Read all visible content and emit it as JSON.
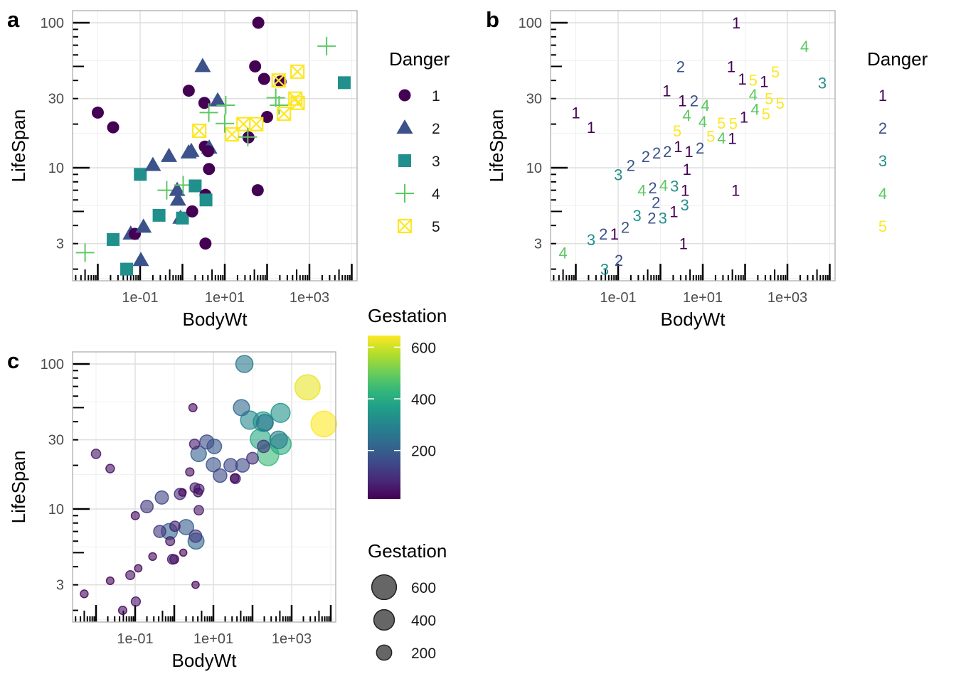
{
  "panel_tags": [
    "a",
    "b",
    "c"
  ],
  "legends": {
    "danger_title": "Danger",
    "danger_levels": [
      "1",
      "2",
      "3",
      "4",
      "5"
    ],
    "gestation_color_title": "Gestation",
    "gestation_color_ticks": [
      "600",
      "400",
      "200"
    ],
    "gestation_color_tick_values": [
      600,
      400,
      200
    ],
    "gestation_size_title": "Gestation",
    "gestation_size_ticks": [
      "600",
      "400",
      "200"
    ],
    "gestation_size_tick_values": [
      600,
      400,
      200
    ]
  },
  "colors": {
    "danger": [
      "#440154",
      "#3B528B",
      "#21908C",
      "#5DC863",
      "#FDE725"
    ],
    "viridis": [
      "#440154",
      "#482878",
      "#3E4A89",
      "#31688E",
      "#26828E",
      "#1F9E89",
      "#35B779",
      "#6DCD59",
      "#B4DE2C",
      "#FDE725"
    ]
  },
  "chart_data": [
    {
      "panel": "a",
      "type": "scatter",
      "xlabel": "BodyWt",
      "ylabel": "LifeSpan",
      "x_scale": "log10",
      "y_scale": "log10",
      "xlim": [
        0.0025,
        13000
      ],
      "ylim": [
        1.65,
        121
      ],
      "x_ticks": [
        {
          "value": 0.1,
          "label": "1e-01"
        },
        {
          "value": 10,
          "label": "1e+01"
        },
        {
          "value": 1000,
          "label": "1e+03"
        }
      ],
      "y_ticks": [
        {
          "value": 3,
          "label": "3"
        },
        {
          "value": 10,
          "label": "10"
        },
        {
          "value": 30,
          "label": "30"
        },
        {
          "value": 100,
          "label": "100"
        }
      ],
      "grid": true,
      "log_ticks": true,
      "encoding": {
        "shape": "Danger",
        "color": "Danger"
      },
      "legend_position": "right",
      "shapes": [
        "circle",
        "triangle",
        "square",
        "plus",
        "square-x"
      ],
      "points_fields": [
        "BodyWt",
        "LifeSpan",
        "Gestation",
        "Danger"
      ],
      "points": [
        [
          62,
          100,
          267,
          1
        ],
        [
          2547,
          69,
          624,
          4
        ],
        [
          6654,
          38.6,
          645,
          3
        ],
        [
          3,
          50,
          28,
          2
        ],
        [
          52.16,
          50,
          230,
          1
        ],
        [
          85,
          41,
          310,
          1
        ],
        [
          521,
          46,
          336,
          5
        ],
        [
          207,
          39.3,
          252,
          1
        ],
        [
          187.1,
          40,
          365,
          5
        ],
        [
          1.41,
          34,
          null,
          1
        ],
        [
          3.3,
          28,
          63,
          1
        ],
        [
          6.8,
          29,
          164,
          2
        ],
        [
          4.19,
          24,
          210,
          4
        ],
        [
          10.55,
          27,
          180,
          4
        ],
        [
          160,
          30.4,
          392,
          4
        ],
        [
          192,
          27,
          115,
          4
        ],
        [
          465,
          30,
          281,
          5
        ],
        [
          529,
          28,
          400,
          5
        ],
        [
          250,
          23.6,
          440,
          5
        ],
        [
          100,
          22.4,
          100,
          1
        ],
        [
          27.66,
          20,
          148,
          5
        ],
        [
          55.5,
          20,
          151,
          5
        ],
        [
          14.83,
          17,
          150,
          5
        ],
        [
          36.33,
          16.2,
          63,
          1
        ],
        [
          35,
          16.3,
          33,
          4
        ],
        [
          10,
          20.2,
          170,
          4
        ],
        [
          2.5,
          18,
          31,
          5
        ],
        [
          0.023,
          19,
          35,
          1
        ],
        [
          0.01,
          24,
          50,
          1
        ],
        [
          0.48,
          12,
          140,
          2
        ],
        [
          1.62,
          13,
          17,
          2
        ],
        [
          1.4,
          12.7,
          90,
          2
        ],
        [
          3.385,
          14,
          60,
          1
        ],
        [
          4.288,
          13.7,
          63,
          2
        ],
        [
          4.05,
          13,
          38,
          1
        ],
        [
          4.235,
          9.8,
          52,
          1
        ],
        [
          0.101,
          9,
          28,
          3
        ],
        [
          0.2,
          10.4,
          120,
          2
        ],
        [
          0.425,
          7,
          112,
          4
        ],
        [
          0.75,
          7,
          225,
          2
        ],
        [
          1.04,
          7.6,
          68,
          4
        ],
        [
          2,
          7.5,
          200,
          3
        ],
        [
          0.785,
          6,
          42,
          2
        ],
        [
          3.5,
          6.5,
          120,
          1
        ],
        [
          3.6,
          6,
          225,
          3
        ],
        [
          0.28,
          4.7,
          21,
          3
        ],
        [
          0.9,
          4.5,
          60,
          2
        ],
        [
          1,
          4.5,
          42,
          3
        ],
        [
          1.7,
          5,
          12,
          1
        ],
        [
          0.023,
          3.2,
          19,
          3
        ],
        [
          0.06,
          3.5,
          null,
          2
        ],
        [
          0.075,
          3.5,
          42,
          1
        ],
        [
          0.12,
          3.9,
          16,
          2
        ],
        [
          0.104,
          2.3,
          46,
          2
        ],
        [
          3.5,
          3,
          14,
          1
        ],
        [
          0.048,
          2,
          30,
          3
        ],
        [
          0.005,
          2.6,
          21.5,
          4
        ],
        [
          60,
          7,
          null,
          1
        ]
      ]
    },
    {
      "panel": "b",
      "type": "scatter",
      "xlabel": "BodyWt",
      "ylabel": "LifeSpan",
      "x_scale": "log10",
      "y_scale": "log10",
      "xlim": [
        0.0025,
        13000
      ],
      "ylim": [
        1.65,
        121
      ],
      "x_ticks": [
        {
          "value": 0.1,
          "label": "1e-01"
        },
        {
          "value": 10,
          "label": "1e+01"
        },
        {
          "value": 1000,
          "label": "1e+03"
        }
      ],
      "y_ticks": [
        {
          "value": 3,
          "label": "3"
        },
        {
          "value": 10,
          "label": "10"
        },
        {
          "value": 30,
          "label": "30"
        },
        {
          "value": 100,
          "label": "100"
        }
      ],
      "grid": true,
      "log_ticks": true,
      "encoding": {
        "label": "Danger",
        "color": "Danger"
      },
      "legend_position": "right",
      "points_fields": [
        "BodyWt",
        "LifeSpan",
        "Gestation",
        "Danger"
      ],
      "points": [
        [
          62,
          100,
          267,
          1
        ],
        [
          2547,
          69,
          624,
          4
        ],
        [
          6654,
          38.6,
          645,
          3
        ],
        [
          3,
          50,
          28,
          2
        ],
        [
          52.16,
          50,
          230,
          1
        ],
        [
          85,
          41,
          310,
          1
        ],
        [
          521,
          46,
          336,
          5
        ],
        [
          207,
          39.3,
          252,
          1
        ],
        [
          187.1,
          40,
          365,
          5
        ],
        [
          1.41,
          34,
          null,
          1
        ],
        [
          3.3,
          28,
          63,
          1
        ],
        [
          6.8,
          29,
          164,
          2
        ],
        [
          4.19,
          24,
          210,
          4
        ],
        [
          10.55,
          27,
          180,
          4
        ],
        [
          160,
          30.4,
          392,
          4
        ],
        [
          192,
          27,
          115,
          4
        ],
        [
          465,
          30,
          281,
          5
        ],
        [
          529,
          28,
          400,
          5
        ],
        [
          250,
          23.6,
          440,
          5
        ],
        [
          100,
          22.4,
          100,
          1
        ],
        [
          27.66,
          20,
          148,
          5
        ],
        [
          55.5,
          20,
          151,
          5
        ],
        [
          14.83,
          17,
          150,
          5
        ],
        [
          36.33,
          16.2,
          63,
          1
        ],
        [
          35,
          16.3,
          33,
          4
        ],
        [
          10,
          20.2,
          170,
          4
        ],
        [
          2.5,
          18,
          31,
          5
        ],
        [
          0.023,
          19,
          35,
          1
        ],
        [
          0.01,
          24,
          50,
          1
        ],
        [
          0.48,
          12,
          140,
          2
        ],
        [
          1.62,
          13,
          17,
          2
        ],
        [
          1.4,
          12.7,
          90,
          2
        ],
        [
          3.385,
          14,
          60,
          1
        ],
        [
          4.288,
          13.7,
          63,
          2
        ],
        [
          4.05,
          13,
          38,
          1
        ],
        [
          4.235,
          9.8,
          52,
          1
        ],
        [
          0.101,
          9,
          28,
          3
        ],
        [
          0.2,
          10.4,
          120,
          2
        ],
        [
          0.425,
          7,
          112,
          4
        ],
        [
          0.75,
          7,
          225,
          2
        ],
        [
          1.04,
          7.6,
          68,
          4
        ],
        [
          2,
          7.5,
          200,
          3
        ],
        [
          0.785,
          6,
          42,
          2
        ],
        [
          3.5,
          6.5,
          120,
          1
        ],
        [
          3.6,
          6,
          225,
          3
        ],
        [
          0.28,
          4.7,
          21,
          3
        ],
        [
          0.9,
          4.5,
          60,
          2
        ],
        [
          1,
          4.5,
          42,
          3
        ],
        [
          1.7,
          5,
          12,
          1
        ],
        [
          0.023,
          3.2,
          19,
          3
        ],
        [
          0.06,
          3.5,
          null,
          2
        ],
        [
          0.075,
          3.5,
          42,
          1
        ],
        [
          0.12,
          3.9,
          16,
          2
        ],
        [
          0.104,
          2.3,
          46,
          2
        ],
        [
          3.5,
          3,
          14,
          1
        ],
        [
          0.048,
          2,
          30,
          3
        ],
        [
          0.005,
          2.6,
          21.5,
          4
        ],
        [
          60,
          7,
          null,
          1
        ]
      ]
    },
    {
      "panel": "c",
      "type": "scatter",
      "xlabel": "BodyWt",
      "ylabel": "LifeSpan",
      "x_scale": "log10",
      "y_scale": "log10",
      "xlim": [
        0.0025,
        13000
      ],
      "ylim": [
        1.65,
        121
      ],
      "x_ticks": [
        {
          "value": 0.1,
          "label": "1e-01"
        },
        {
          "value": 10,
          "label": "1e+01"
        },
        {
          "value": 1000,
          "label": "1e+03"
        }
      ],
      "y_ticks": [
        {
          "value": 3,
          "label": "3"
        },
        {
          "value": 10,
          "label": "10"
        },
        {
          "value": 30,
          "label": "30"
        },
        {
          "value": 100,
          "label": "100"
        }
      ],
      "grid": true,
      "log_ticks": true,
      "encoding": {
        "size": "Gestation",
        "color": "Gestation"
      },
      "gestation_range": [
        12,
        645
      ],
      "alpha": 0.6,
      "legend_position": "right",
      "points_fields": [
        "BodyWt",
        "LifeSpan",
        "Gestation"
      ],
      "points": [
        [
          62,
          100,
          267
        ],
        [
          2547,
          69,
          624
        ],
        [
          6654,
          38.6,
          645
        ],
        [
          3,
          50,
          28
        ],
        [
          52.16,
          50,
          230
        ],
        [
          85,
          41,
          310
        ],
        [
          521,
          46,
          336
        ],
        [
          207,
          39.3,
          252
        ],
        [
          187.1,
          40,
          365
        ],
        [
          3.3,
          28,
          63
        ],
        [
          6.8,
          29,
          164
        ],
        [
          4.19,
          24,
          210
        ],
        [
          10.55,
          27,
          180
        ],
        [
          160,
          30.4,
          392
        ],
        [
          192,
          27,
          115
        ],
        [
          465,
          30,
          281
        ],
        [
          529,
          28,
          400
        ],
        [
          250,
          23.6,
          440
        ],
        [
          100,
          22.4,
          100
        ],
        [
          27.66,
          20,
          148
        ],
        [
          55.5,
          20,
          151
        ],
        [
          14.83,
          17,
          150
        ],
        [
          36.33,
          16.2,
          63
        ],
        [
          35,
          16.3,
          33
        ],
        [
          10,
          20.2,
          170
        ],
        [
          2.5,
          18,
          31
        ],
        [
          0.023,
          19,
          35
        ],
        [
          0.01,
          24,
          50
        ],
        [
          0.48,
          12,
          140
        ],
        [
          1.62,
          13,
          17
        ],
        [
          1.4,
          12.7,
          90
        ],
        [
          3.385,
          14,
          60
        ],
        [
          4.288,
          13.7,
          63
        ],
        [
          4.05,
          13,
          38
        ],
        [
          4.235,
          9.8,
          52
        ],
        [
          0.101,
          9,
          28
        ],
        [
          0.2,
          10.4,
          120
        ],
        [
          0.425,
          7,
          112
        ],
        [
          0.75,
          7,
          225
        ],
        [
          1.04,
          7.6,
          68
        ],
        [
          2,
          7.5,
          200
        ],
        [
          0.785,
          6,
          42
        ],
        [
          3.5,
          6.5,
          120
        ],
        [
          3.6,
          6,
          225
        ],
        [
          0.28,
          4.7,
          21
        ],
        [
          0.9,
          4.5,
          60
        ],
        [
          1,
          4.5,
          42
        ],
        [
          1.7,
          5,
          12
        ],
        [
          0.023,
          3.2,
          19
        ],
        [
          0.075,
          3.5,
          42
        ],
        [
          0.12,
          3.9,
          16
        ],
        [
          0.104,
          2.3,
          46
        ],
        [
          3.5,
          3,
          14
        ],
        [
          0.048,
          2,
          30
        ],
        [
          0.005,
          2.6,
          21.5
        ]
      ]
    }
  ]
}
